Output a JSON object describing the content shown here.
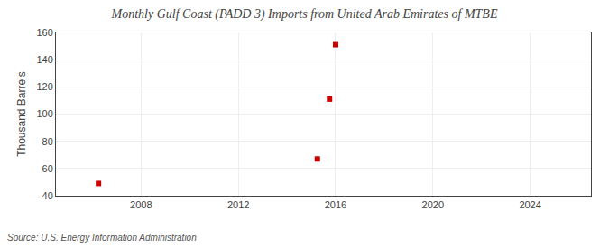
{
  "chart_data": {
    "type": "scatter",
    "title": "Monthly Gulf Coast (PADD 3) Imports from United Arab Emirates of MTBE",
    "ylabel": "Thousand Barrels",
    "annotations": [
      "Source: U.S. Energy Information Administration"
    ],
    "x": [
      2006.25,
      2015.25,
      2015.75,
      2016.0
    ],
    "values": [
      49,
      67,
      111,
      151
    ],
    "color": "#cc0000",
    "marker": "square",
    "xlim": [
      2004.5,
      2026.5
    ],
    "ylim": [
      40,
      160
    ],
    "xticks": [
      2008,
      2012,
      2016,
      2020,
      2024
    ],
    "yticks": [
      40,
      60,
      80,
      100,
      120,
      140,
      160
    ],
    "grid": true
  }
}
